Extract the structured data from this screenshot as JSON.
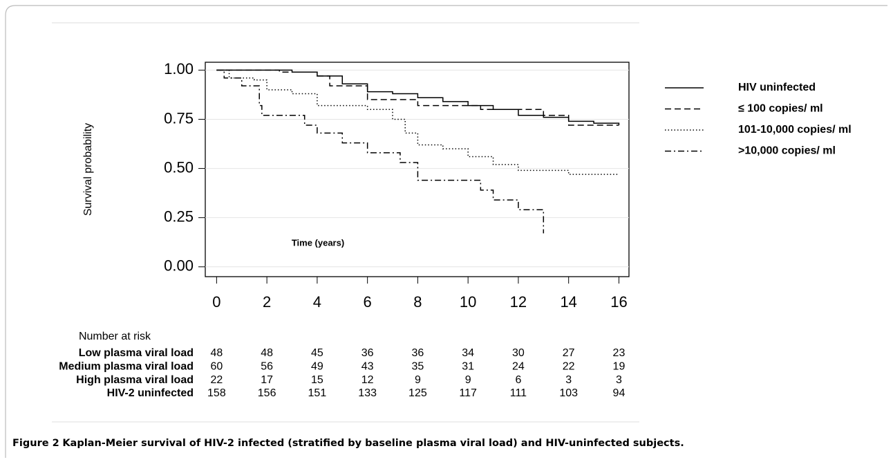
{
  "chart_data": {
    "type": "line",
    "step": true,
    "ylabel": "Survival probability",
    "annotation": "Time (years)",
    "xlim": [
      -0.45,
      16.4
    ],
    "ylim": [
      -0.05,
      1.04
    ],
    "xticks": [
      0,
      2,
      4,
      6,
      8,
      10,
      12,
      14,
      16
    ],
    "yticks": [
      {
        "value": 0,
        "label": "0.00"
      },
      0.25,
      {
        "value": 0.5,
        "label": "0.50"
      },
      0.75,
      {
        "value": 1,
        "label": "1.00"
      }
    ],
    "grid": true,
    "legend": "right",
    "series": [
      {
        "name": "HIV uninfected",
        "color": "#000000",
        "dash": "solid",
        "x": [
          0,
          2.5,
          3,
          4,
          5,
          6,
          7,
          8,
          9,
          10,
          11,
          12,
          13,
          14,
          15,
          16
        ],
        "values": [
          1.0,
          1.0,
          0.99,
          0.97,
          0.93,
          0.89,
          0.88,
          0.86,
          0.84,
          0.82,
          0.8,
          0.77,
          0.76,
          0.74,
          0.73,
          0.72
        ]
      },
      {
        "name": "≤ 100 copies/ ml",
        "color": "#000000",
        "dash": "dashed",
        "x": [
          0,
          2.5,
          4,
          4.5,
          6,
          8,
          10.5,
          13,
          14,
          16
        ],
        "values": [
          1.0,
          0.99,
          0.97,
          0.92,
          0.85,
          0.82,
          0.8,
          0.77,
          0.72,
          0.72
        ]
      },
      {
        "name": "101-10,000 copies/ ml",
        "color": "#000000",
        "dash": "dotted",
        "x": [
          0,
          0.5,
          1.5,
          2,
          3,
          4,
          6,
          7,
          7.5,
          8,
          9,
          10,
          11,
          12,
          14,
          16
        ],
        "values": [
          1.0,
          0.96,
          0.95,
          0.9,
          0.88,
          0.82,
          0.8,
          0.75,
          0.68,
          0.62,
          0.6,
          0.56,
          0.52,
          0.49,
          0.47,
          0.47
        ]
      },
      {
        "name": ">10,000 copies/ ml",
        "color": "#000000",
        "dash": "dashdot",
        "x": [
          0,
          0.3,
          1,
          1.7,
          1.8,
          3.5,
          4,
          5,
          6,
          7.3,
          8,
          10.5,
          11,
          12,
          13
        ],
        "values": [
          1.0,
          0.96,
          0.92,
          0.82,
          0.77,
          0.72,
          0.68,
          0.63,
          0.58,
          0.53,
          0.44,
          0.39,
          0.34,
          0.29,
          0.17
        ]
      }
    ]
  },
  "risk_table": {
    "title": "Number at risk",
    "rows": [
      {
        "label": "Low plasma viral load",
        "values": [
          48,
          48,
          45,
          36,
          36,
          34,
          30,
          27,
          23
        ]
      },
      {
        "label": "Medium plasma viral load",
        "values": [
          60,
          56,
          49,
          43,
          35,
          31,
          24,
          22,
          19
        ]
      },
      {
        "label": "High plasma viral load",
        "values": [
          22,
          17,
          15,
          12,
          9,
          9,
          6,
          3,
          3
        ]
      },
      {
        "label": "HIV-2 uninfected",
        "values": [
          158,
          156,
          151,
          133,
          125,
          117,
          111,
          103,
          94
        ]
      }
    ]
  },
  "caption": {
    "label": "Figure 2",
    "text": "Kaplan-Meier survival of HIV-2 infected (stratified by baseline plasma viral load) and HIV-uninfected subjects."
  }
}
